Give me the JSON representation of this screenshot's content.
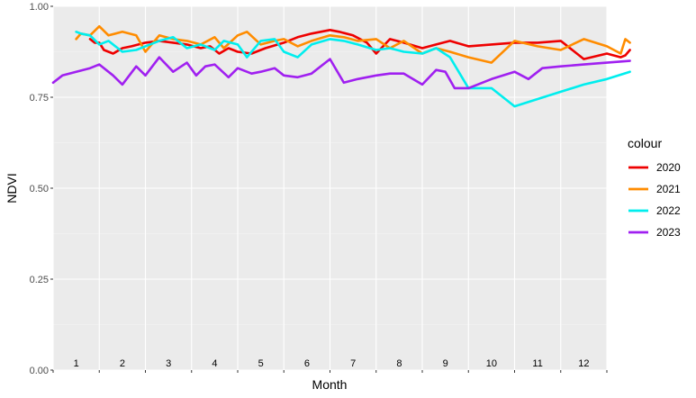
{
  "chart_data": {
    "type": "line",
    "title": "",
    "xlabel": "Month",
    "ylabel": "NDVI",
    "ylim": [
      0,
      1
    ],
    "yticks": [
      "0.00",
      "0.25",
      "0.50",
      "0.75",
      "1.00"
    ],
    "xticks": [
      "1",
      "2",
      "3",
      "4",
      "5",
      "6",
      "7",
      "8",
      "9",
      "10",
      "11",
      "12"
    ],
    "grid": true,
    "legend": {
      "title": "colour",
      "position": "right"
    },
    "series": [
      {
        "name": "2020",
        "color": "#ee0000",
        "x": [
          0.8,
          0.9,
          1.0,
          1.1,
          1.3,
          1.5,
          1.7,
          2.0,
          2.3,
          2.6,
          2.9,
          3.2,
          3.4,
          3.6,
          3.8,
          4.0,
          4.3,
          4.6,
          5.0,
          5.3,
          5.6,
          6.0,
          6.2,
          6.5,
          6.8,
          7.0,
          7.3,
          7.6,
          8.0,
          8.3,
          8.6,
          9.0,
          9.5,
          10.0,
          10.5,
          11.0,
          11.5,
          12.0,
          12.3,
          12.4,
          12.5
        ],
        "values": [
          0.91,
          0.9,
          0.9,
          0.88,
          0.87,
          0.885,
          0.89,
          0.9,
          0.905,
          0.9,
          0.895,
          0.885,
          0.89,
          0.87,
          0.885,
          0.875,
          0.87,
          0.885,
          0.9,
          0.915,
          0.925,
          0.935,
          0.93,
          0.92,
          0.9,
          0.87,
          0.91,
          0.9,
          0.885,
          0.895,
          0.905,
          0.89,
          0.895,
          0.9,
          0.9,
          0.905,
          0.855,
          0.87,
          0.86,
          0.865,
          0.88
        ]
      },
      {
        "name": "2021",
        "color": "#ff8c00",
        "x": [
          0.5,
          0.6,
          0.8,
          1.0,
          1.2,
          1.5,
          1.8,
          2.0,
          2.3,
          2.6,
          2.9,
          3.2,
          3.5,
          3.7,
          4.0,
          4.2,
          4.5,
          4.8,
          5.0,
          5.3,
          5.6,
          6.0,
          6.3,
          6.6,
          7.0,
          7.3,
          7.6,
          8.0,
          8.3,
          8.6,
          9.0,
          9.5,
          10.0,
          10.5,
          11.0,
          11.5,
          12.0,
          12.3,
          12.4,
          12.5
        ],
        "values": [
          0.91,
          0.925,
          0.92,
          0.945,
          0.92,
          0.93,
          0.92,
          0.875,
          0.92,
          0.91,
          0.905,
          0.895,
          0.915,
          0.885,
          0.92,
          0.93,
          0.895,
          0.905,
          0.91,
          0.89,
          0.905,
          0.92,
          0.915,
          0.905,
          0.91,
          0.885,
          0.905,
          0.87,
          0.885,
          0.875,
          0.86,
          0.845,
          0.905,
          0.89,
          0.88,
          0.91,
          0.89,
          0.87,
          0.91,
          0.9
        ]
      },
      {
        "name": "2022",
        "color": "#00eeee",
        "x": [
          0.5,
          0.6,
          0.8,
          1.0,
          1.2,
          1.5,
          1.8,
          2.0,
          2.3,
          2.6,
          2.9,
          3.2,
          3.5,
          3.7,
          4.0,
          4.2,
          4.5,
          4.8,
          5.0,
          5.3,
          5.6,
          6.0,
          6.3,
          6.6,
          7.0,
          7.3,
          7.6,
          8.0,
          8.3,
          8.6,
          9.0,
          9.5,
          10.0,
          10.5,
          11.0,
          11.5,
          12.0,
          12.5
        ],
        "values": [
          0.93,
          0.925,
          0.92,
          0.895,
          0.905,
          0.875,
          0.88,
          0.89,
          0.905,
          0.915,
          0.885,
          0.895,
          0.88,
          0.905,
          0.895,
          0.86,
          0.905,
          0.91,
          0.875,
          0.86,
          0.895,
          0.91,
          0.905,
          0.895,
          0.88,
          0.885,
          0.875,
          0.87,
          0.885,
          0.86,
          0.775,
          0.775,
          0.725,
          0.745,
          0.765,
          0.785,
          0.8,
          0.82
        ]
      },
      {
        "name": "2023",
        "color": "#a020f0",
        "x": [
          0.0,
          0.2,
          0.5,
          0.8,
          1.0,
          1.3,
          1.5,
          1.8,
          2.0,
          2.3,
          2.6,
          2.9,
          3.1,
          3.3,
          3.5,
          3.8,
          4.0,
          4.3,
          4.5,
          4.8,
          5.0,
          5.3,
          5.6,
          6.0,
          6.3,
          6.6,
          7.0,
          7.3,
          7.6,
          8.0,
          8.3,
          8.5,
          8.7,
          9.0,
          9.5,
          10.0,
          10.3,
          10.6,
          11.0,
          11.5,
          12.0,
          12.5
        ],
        "values": [
          0.79,
          0.81,
          0.82,
          0.83,
          0.84,
          0.81,
          0.785,
          0.835,
          0.81,
          0.86,
          0.82,
          0.845,
          0.81,
          0.835,
          0.84,
          0.805,
          0.83,
          0.815,
          0.82,
          0.83,
          0.81,
          0.805,
          0.815,
          0.855,
          0.79,
          0.8,
          0.81,
          0.815,
          0.815,
          0.785,
          0.825,
          0.82,
          0.775,
          0.775,
          0.8,
          0.82,
          0.8,
          0.83,
          0.835,
          0.84,
          0.845,
          0.85
        ]
      }
    ]
  }
}
